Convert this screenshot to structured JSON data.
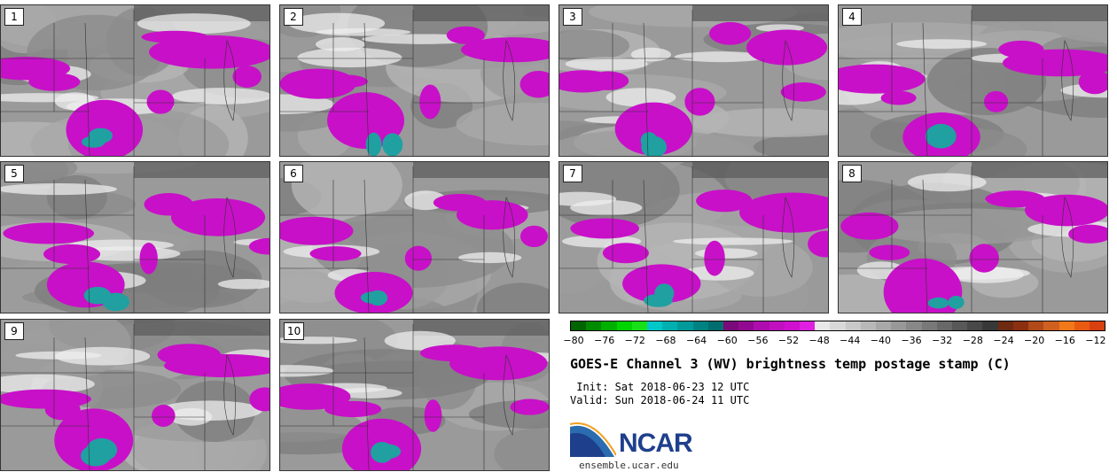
{
  "panels": [
    "1",
    "2",
    "3",
    "4",
    "5",
    "6",
    "7",
    "8",
    "9",
    "10"
  ],
  "colorbar": {
    "ticks": [
      "−80",
      "−76",
      "−72",
      "−68",
      "−64",
      "−60",
      "−56",
      "−52",
      "−48",
      "−44",
      "−40",
      "−36",
      "−32",
      "−28",
      "−24",
      "−20",
      "−16",
      "−12"
    ],
    "colors": [
      "#006400",
      "#008a00",
      "#00b000",
      "#00d400",
      "#18e018",
      "#00c8c8",
      "#00b0b0",
      "#009a9a",
      "#008282",
      "#006e6e",
      "#7a0a7a",
      "#920a92",
      "#ae0cae",
      "#c010c0",
      "#d010d0",
      "#e020e0",
      "#e8e8e8",
      "#d8d8d8",
      "#c8c8c8",
      "#b8b8b8",
      "#a8a8a8",
      "#989898",
      "#888888",
      "#787878",
      "#686868",
      "#585858",
      "#484848",
      "#383838",
      "#6e2a10",
      "#8a3010",
      "#b04a18",
      "#d06020",
      "#f07818",
      "#e85a10",
      "#d84010"
    ]
  },
  "title": "GOES-E Channel 3 (WV) brightness temp postage stamp (C)",
  "init": " Init: Sat 2018-06-23 12 UTC",
  "valid": "Valid: Sun 2018-06-24 11 UTC",
  "logo": {
    "text": "NCAR",
    "website": "ensemble.ucar.edu"
  }
}
